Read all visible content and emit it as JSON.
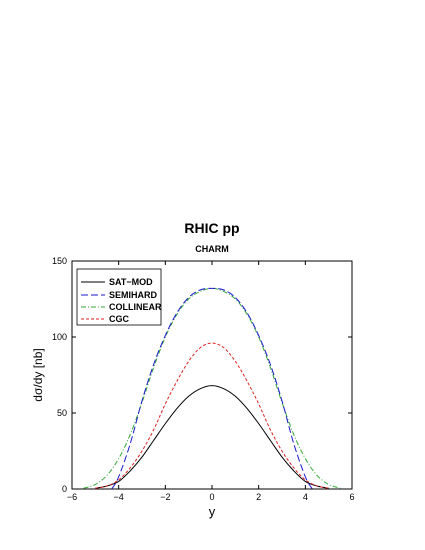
{
  "chart_data": {
    "type": "line",
    "title": "RHIC pp",
    "subtitle": "CHARM",
    "xlabel": "y",
    "ylabel": "dσ/dy [nb]",
    "xlim": [
      -6,
      6
    ],
    "ylim": [
      0,
      150
    ],
    "x_ticks": [
      -6,
      -4,
      -2,
      0,
      2,
      4,
      6
    ],
    "y_ticks": [
      0,
      50,
      100,
      150
    ],
    "x_tick_labels": [
      "−6",
      "−4",
      "−2",
      "0",
      "2",
      "4",
      "6"
    ],
    "y_tick_labels": [
      "0",
      "50",
      "100",
      "150"
    ],
    "grid": false,
    "legend_position": "top-left",
    "series": [
      {
        "name": "SAT−MOD",
        "color": "#000000",
        "style": "solid",
        "x": [
          -5.0,
          -4.5,
          -4.0,
          -3.5,
          -3.0,
          -2.5,
          -2.0,
          -1.5,
          -1.0,
          -0.5,
          0.0,
          0.5,
          1.0,
          1.5,
          2.0,
          2.5,
          3.0,
          3.5,
          4.0,
          4.5,
          5.0
        ],
        "values": [
          0.5,
          2,
          5,
          12,
          21,
          32,
          43,
          53,
          61,
          66,
          68,
          66,
          61,
          53,
          43,
          32,
          21,
          12,
          5,
          2,
          0.5
        ]
      },
      {
        "name": "SEMIHARD",
        "color": "#1a1acc",
        "style": "longdash",
        "x": [
          -4.3,
          -4.0,
          -3.5,
          -3.0,
          -2.5,
          -2.0,
          -1.5,
          -1.0,
          -0.5,
          0.0,
          0.5,
          1.0,
          1.5,
          2.0,
          2.5,
          3.0,
          3.5,
          4.0,
          4.3
        ],
        "values": [
          0,
          8,
          30,
          58,
          82,
          101,
          116,
          126,
          131,
          132,
          131,
          126,
          116,
          101,
          82,
          58,
          30,
          8,
          0
        ]
      },
      {
        "name": "COLLINEAR",
        "color": "#33aa33",
        "style": "dashdot",
        "x": [
          -5.5,
          -5.0,
          -4.5,
          -4.0,
          -3.5,
          -3.0,
          -2.5,
          -2.0,
          -1.5,
          -1.0,
          -0.5,
          0.0,
          0.5,
          1.0,
          1.5,
          2.0,
          2.5,
          3.0,
          3.5,
          4.0,
          4.5,
          5.0,
          5.5
        ],
        "values": [
          0.5,
          3,
          9,
          20,
          36,
          57,
          80,
          100,
          115,
          125,
          130,
          132,
          130,
          125,
          115,
          100,
          80,
          57,
          36,
          20,
          9,
          3,
          0.5
        ]
      },
      {
        "name": "CGC",
        "color": "#dd2222",
        "style": "dashed",
        "x": [
          -5.0,
          -4.5,
          -4.0,
          -3.5,
          -3.0,
          -2.5,
          -2.0,
          -1.5,
          -1.0,
          -0.5,
          0.0,
          0.5,
          1.0,
          1.5,
          2.0,
          2.5,
          3.0,
          3.5,
          4.0,
          4.5,
          5.0
        ],
        "values": [
          0.5,
          2,
          6,
          14,
          25,
          39,
          56,
          71,
          84,
          93,
          96,
          93,
          84,
          71,
          56,
          39,
          25,
          14,
          6,
          2,
          0.5
        ]
      }
    ]
  }
}
